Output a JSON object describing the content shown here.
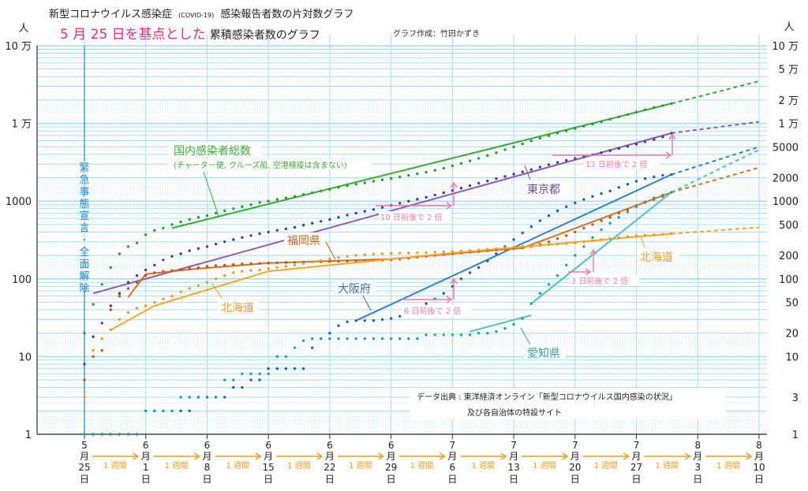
{
  "header": {
    "title_main": "新型コロナウイルス感染症",
    "title_covid": "(COVID-19)",
    "title_rest": "感染報告者数の片対数グラフ",
    "subtitle_highlight": "5 月 25 日を基点とした",
    "subtitle_rest": "累積感染者数のグラフ",
    "credit": "グラフ作成：竹田かずき"
  },
  "source": {
    "line1": "データ出典 : 東洋経済オンライン「新型コロナウイルス国内感染の状況」",
    "line2": "及び各自治体の特設サイト"
  },
  "emergency_label": "緊急事態宣言 全面解除",
  "week_label": "1 週間",
  "colors": {
    "national": "#3aaa35",
    "tokyo": "#8c5bb5",
    "osaka": "#2f7fd0",
    "fukuoka": "#d6721c",
    "hokkaido": "#f5a623",
    "aichi": "#4fc0c8",
    "grid": "#a8dcf0",
    "pink": "#f07aa8",
    "emergency": "#1e88c8",
    "week": "#f39a1b"
  },
  "chart_data": {
    "type": "line",
    "scale": "log",
    "title": "新型コロナウイルス感染症 (COVID-19) 感染報告者数の片対数グラフ",
    "subtitle": "5 月 25 日を基点とした累積感染者数のグラフ",
    "ylabel_unit": "人",
    "ylim": [
      1,
      100000
    ],
    "xlim_days": [
      0,
      77
    ],
    "left_ticks": [
      {
        "value": 100000,
        "label": "10 万"
      },
      {
        "value": 10000,
        "label": "1 万"
      },
      {
        "value": 1000,
        "label": "1000"
      },
      {
        "value": 100,
        "label": "100"
      },
      {
        "value": 10,
        "label": "10"
      },
      {
        "value": 1,
        "label": "1"
      }
    ],
    "right_ticks": [
      {
        "value": 100000,
        "label": "10 万"
      },
      {
        "value": 50000,
        "label": "5 万"
      },
      {
        "value": 20000,
        "label": "2 万"
      },
      {
        "value": 10000,
        "label": "1 万"
      },
      {
        "value": 5000,
        "label": "5000"
      },
      {
        "value": 2000,
        "label": "2000"
      },
      {
        "value": 1000,
        "label": "1000"
      },
      {
        "value": 500,
        "label": "500"
      },
      {
        "value": 200,
        "label": "200"
      },
      {
        "value": 100,
        "label": "100"
      },
      {
        "value": 50,
        "label": "50"
      },
      {
        "value": 20,
        "label": "20"
      },
      {
        "value": 10,
        "label": "10"
      },
      {
        "value": 3,
        "label": "3"
      },
      {
        "value": 1,
        "label": "1"
      }
    ],
    "x_ticks": [
      {
        "day": 0,
        "month": "5",
        "date": "25"
      },
      {
        "day": 7,
        "month": "6",
        "date": "1"
      },
      {
        "day": 14,
        "month": "6",
        "date": "8"
      },
      {
        "day": 21,
        "month": "6",
        "date": "15"
      },
      {
        "day": 28,
        "month": "6",
        "date": "22"
      },
      {
        "day": 35,
        "month": "6",
        "date": "29"
      },
      {
        "day": 42,
        "month": "7",
        "date": "6"
      },
      {
        "day": 49,
        "month": "7",
        "date": "13"
      },
      {
        "day": 56,
        "month": "7",
        "date": "20"
      },
      {
        "day": 63,
        "month": "7",
        "date": "27"
      },
      {
        "day": 70,
        "month": "8",
        "date": "3"
      },
      {
        "day": 77,
        "month": "8",
        "date": "10"
      }
    ],
    "x_month_suffix": "月",
    "x_day_suffix": "日",
    "series": [
      {
        "key": "national",
        "name": "国内感染者総数",
        "note": "(チャーター便, クルーズ船, 空港検疫は含まない)",
        "values": [
          20,
          47,
          85,
          140,
          210,
          260,
          290,
          370,
          420,
          450,
          500,
          540,
          580,
          620,
          650,
          700,
          750,
          800,
          850,
          900,
          960,
          1000,
          1050,
          1100,
          1150,
          1220,
          1280,
          1350,
          1420,
          1500,
          1580,
          1650,
          1720,
          1800,
          1880,
          1960,
          2050,
          2150,
          2250,
          2350,
          2500,
          2650,
          2850,
          3050,
          3300,
          3550,
          3850,
          4200,
          4600,
          5000,
          5450,
          5950,
          6450,
          6950,
          7500,
          8000,
          8600,
          9200,
          9800,
          10500,
          11300,
          12100,
          13000,
          14000,
          15000,
          16000,
          17000,
          18000
        ],
        "fit": [
          [
            10,
            450
          ],
          [
            67,
            18000
          ]
        ],
        "projection": [
          [
            67,
            18000
          ],
          [
            77,
            35000
          ]
        ]
      },
      {
        "key": "tokyo",
        "name": "東京都",
        "values": [
          8,
          18,
          27,
          45,
          65,
          90,
          110,
          130,
          150,
          175,
          195,
          210,
          230,
          245,
          260,
          280,
          300,
          320,
          340,
          360,
          380,
          400,
          420,
          440,
          460,
          490,
          520,
          550,
          580,
          620,
          660,
          700,
          740,
          780,
          830,
          880,
          940,
          1000,
          1060,
          1120,
          1200,
          1280,
          1370,
          1470,
          1580,
          1700,
          1820,
          1950,
          2080,
          2220,
          2380,
          2550,
          2750,
          2950,
          3150,
          3350,
          3550,
          3750,
          3950,
          4200,
          4450,
          4750,
          5050,
          5400,
          5800,
          6200,
          6700,
          7500
        ],
        "fit": [
          [
            1,
            65
          ],
          [
            67,
            7500
          ]
        ],
        "projection": [
          [
            67,
            7500
          ],
          [
            77,
            10500
          ]
        ]
      },
      {
        "key": "osaka",
        "name": "大阪府",
        "values": [
          1,
          1,
          1,
          1,
          1,
          1,
          1,
          2,
          2,
          2,
          2,
          2,
          2,
          3,
          3,
          3,
          3,
          4,
          4,
          5,
          5,
          7,
          7,
          7,
          7,
          7,
          13,
          17,
          20,
          25,
          28,
          29,
          29,
          29,
          30,
          31,
          33,
          37,
          42,
          48,
          55,
          65,
          80,
          100,
          120,
          140,
          170,
          210,
          260,
          320,
          390,
          470,
          560,
          650,
          750,
          850,
          950,
          1050,
          1150,
          1250,
          1350,
          1500,
          1650,
          1800,
          1950,
          2050,
          2150,
          2200
        ],
        "fit": [
          [
            31,
            29
          ],
          [
            67,
            2200
          ]
        ],
        "projection": [
          [
            67,
            2200
          ],
          [
            77,
            5000
          ]
        ]
      },
      {
        "key": "fukuoka",
        "name": "福岡県",
        "values": [
          5,
          10,
          12,
          40,
          60,
          75,
          90,
          110,
          120,
          125,
          128,
          132,
          136,
          140,
          145,
          148,
          150,
          153,
          155,
          157,
          158,
          160,
          161,
          162,
          163,
          164,
          165,
          166,
          167,
          168,
          169,
          170,
          171,
          172,
          173,
          175,
          180,
          185,
          190,
          195,
          200,
          205,
          210,
          215,
          220,
          225,
          230,
          235,
          240,
          245,
          250,
          260,
          280,
          300,
          330,
          360,
          400,
          450,
          500,
          560,
          620,
          700,
          780,
          870,
          960,
          1050,
          1150,
          1300
        ],
        "fit": [
          [
            5,
            58
          ],
          [
            7,
            115
          ],
          [
            13,
            135
          ],
          [
            21,
            160
          ],
          [
            35,
            180
          ],
          [
            50,
            250
          ],
          [
            67,
            1300
          ]
        ],
        "projection": [
          [
            67,
            1300
          ],
          [
            77,
            2700
          ]
        ]
      },
      {
        "key": "hokkaido",
        "name": "北海道",
        "values": [
          3,
          12,
          17,
          22,
          30,
          37,
          42,
          45,
          50,
          55,
          60,
          68,
          75,
          82,
          90,
          100,
          110,
          120,
          125,
          128,
          130,
          135,
          140,
          145,
          150,
          158,
          165,
          172,
          180,
          188,
          195,
          200,
          205,
          208,
          210,
          212,
          214,
          215,
          216,
          218,
          220,
          222,
          225,
          228,
          232,
          235,
          240,
          245,
          250,
          255,
          260,
          265,
          270,
          275,
          280,
          285,
          290,
          300,
          310,
          320,
          330,
          340,
          350,
          360,
          365,
          370,
          375,
          380
        ],
        "fit": [
          [
            3,
            22
          ],
          [
            8,
            45
          ],
          [
            21,
            125
          ],
          [
            42,
            215
          ],
          [
            67,
            380
          ]
        ],
        "projection": [
          [
            67,
            380
          ],
          [
            77,
            460
          ]
        ]
      },
      {
        "key": "aichi",
        "name": "愛知県",
        "values": [
          1,
          1,
          1,
          1,
          1,
          1,
          1,
          2,
          2,
          2,
          2,
          3,
          3,
          3,
          3,
          3,
          5,
          5,
          6,
          6,
          6,
          6,
          10,
          10,
          13,
          16,
          17,
          17,
          17,
          17,
          17,
          17,
          17,
          17,
          17,
          17,
          17,
          17,
          17,
          19,
          19,
          19,
          19,
          19,
          19,
          20,
          20,
          21,
          23,
          26,
          31,
          48,
          65,
          85,
          110,
          150,
          200,
          260,
          340,
          430,
          520,
          620,
          730,
          850,
          980,
          1100,
          1200,
          1300
        ],
        "fit": [
          [
            51,
            48
          ],
          [
            67,
            1300
          ]
        ],
        "fit_early": [
          [
            44,
            21
          ],
          [
            51,
            34
          ]
        ],
        "projection": [
          [
            67,
            1300
          ],
          [
            77,
            4600
          ]
        ]
      }
    ],
    "annotations": [
      {
        "text": "10 日前後で 2 倍",
        "series": "tokyo"
      },
      {
        "text": "13 日前後で 2 倍",
        "series": "tokyo"
      },
      {
        "text": "6 日前後で 2 倍",
        "series": "osaka"
      },
      {
        "text": "3 日前後で 2 倍",
        "series": "aichi"
      }
    ]
  }
}
